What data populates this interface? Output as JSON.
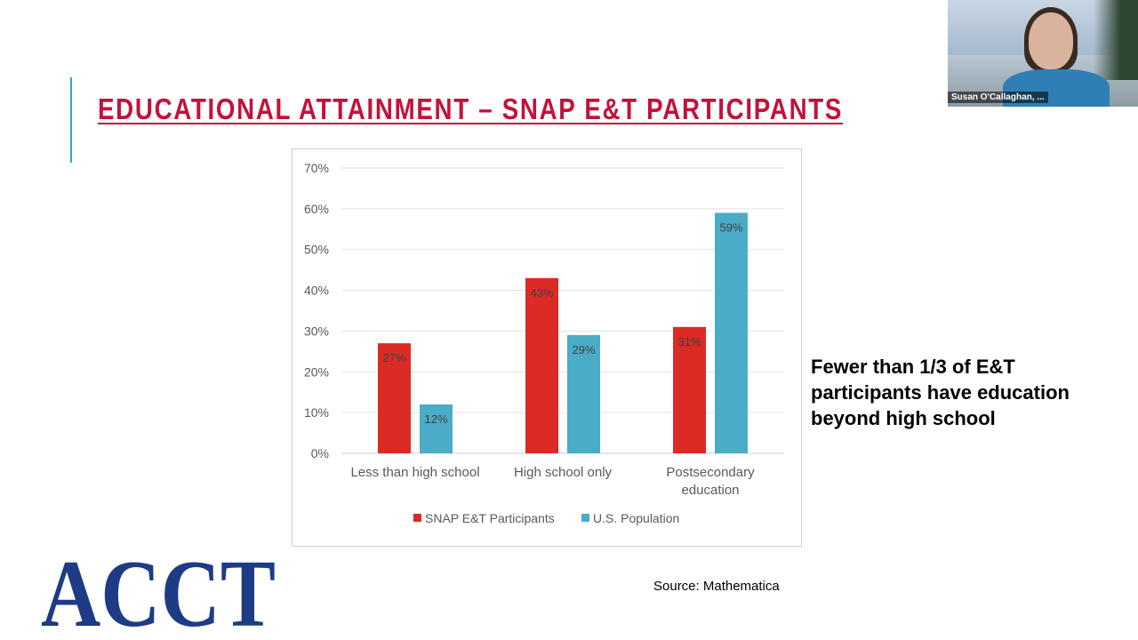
{
  "slide": {
    "title": "EDUCATIONAL ATTAINMENT – SNAP E&T PARTICIPANTS",
    "side_note": "Fewer than 1/3 of E&T participants have education beyond high school",
    "source": "Source: Mathematica",
    "logo_text": "ACCT",
    "accent_color": "#3aa6c4",
    "title_color": "#c4113a",
    "logo_color": "#1d3c85"
  },
  "video": {
    "participant_name": "Susan O'Callaghan, ..."
  },
  "chart_data": {
    "type": "bar",
    "categories": [
      [
        "Less than high school"
      ],
      [
        "High school only"
      ],
      [
        "Postsecondary",
        "education"
      ]
    ],
    "series": [
      {
        "name": "SNAP E&T Participants",
        "color": "#dc2a25",
        "values": [
          27,
          43,
          31
        ],
        "labels": [
          "27%",
          "43%",
          "31%"
        ]
      },
      {
        "name": "U.S. Population",
        "color": "#4aacc6",
        "values": [
          12,
          29,
          59
        ],
        "labels": [
          "12%",
          "29%",
          "59%"
        ]
      }
    ],
    "y_ticks": [
      "0%",
      "10%",
      "20%",
      "30%",
      "40%",
      "50%",
      "60%",
      "70%"
    ],
    "ylim": [
      0,
      70
    ],
    "grid": true,
    "legend_position": "bottom"
  }
}
